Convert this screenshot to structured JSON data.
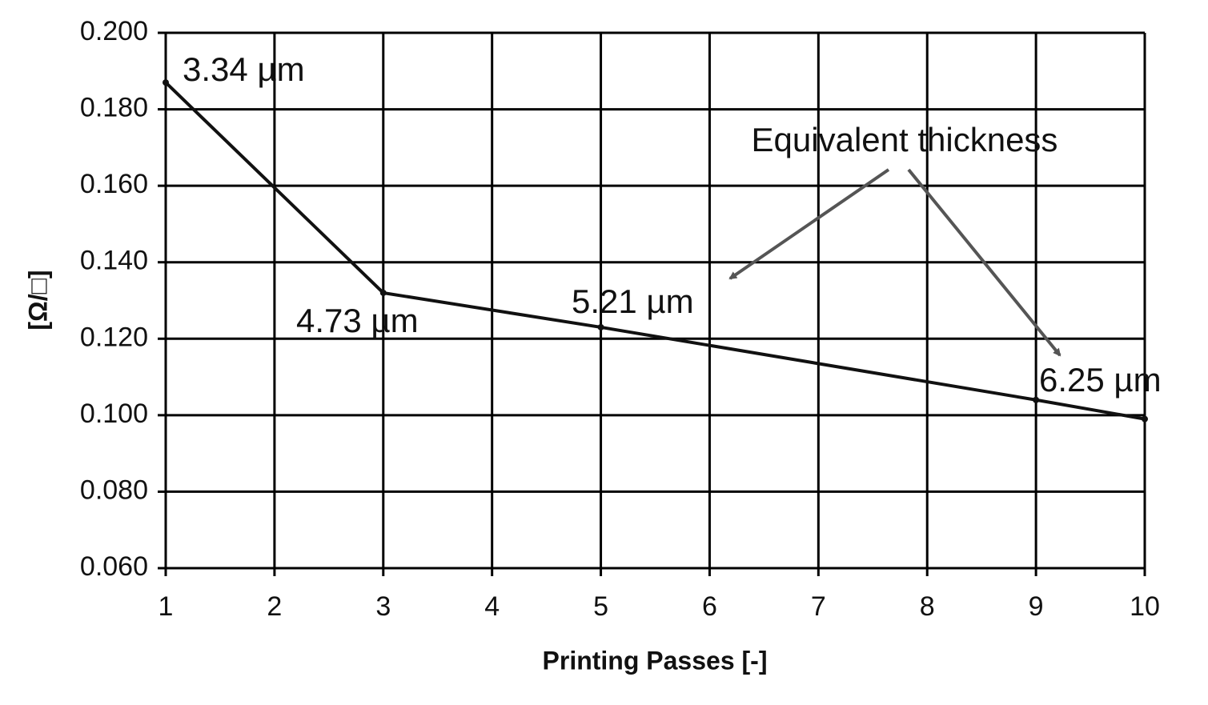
{
  "chart_data": {
    "type": "line",
    "x_label": "Printing Passes [-]",
    "y_label": "[Ω/□]",
    "x": [
      1,
      3,
      5,
      9,
      10
    ],
    "values": [
      0.187,
      0.132,
      0.123,
      0.104,
      0.099
    ],
    "color": "#111111",
    "xlim": [
      1,
      10
    ],
    "xticks": [
      1,
      2,
      3,
      4,
      5,
      6,
      7,
      8,
      9,
      10
    ],
    "ylim": [
      0.06,
      0.2
    ],
    "yticks": [
      {
        "value": 0.06,
        "label": "0.060"
      },
      {
        "value": 0.08,
        "label": "0.080"
      },
      {
        "value": 0.1,
        "label": "0.100"
      },
      {
        "value": 0.12,
        "label": "0.120"
      },
      {
        "value": 0.14,
        "label": "0.140"
      },
      {
        "value": 0.16,
        "label": "0.160"
      },
      {
        "value": 0.18,
        "label": "0.180"
      },
      {
        "value": 0.2,
        "label": "0.200"
      }
    ],
    "grid": true,
    "annotations": [
      "3.34 µm",
      "4.73 µm",
      "5.21 µm",
      "6.25 µm",
      "Equivalent thickness"
    ]
  }
}
